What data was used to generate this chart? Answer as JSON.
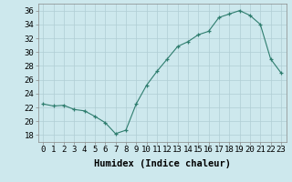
{
  "x": [
    0,
    1,
    2,
    3,
    4,
    5,
    6,
    7,
    8,
    9,
    10,
    11,
    12,
    13,
    14,
    15,
    16,
    17,
    18,
    19,
    20,
    21,
    22,
    23
  ],
  "y": [
    22.5,
    22.2,
    22.3,
    21.7,
    21.5,
    20.7,
    19.8,
    18.2,
    18.7,
    22.5,
    25.2,
    27.2,
    29.0,
    30.8,
    31.5,
    32.5,
    33.0,
    35.0,
    35.5,
    36.0,
    35.3,
    34.0,
    29.0,
    27.0
  ],
  "xlabel": "Humidex (Indice chaleur)",
  "ylabel": "",
  "ylim": [
    17,
    37
  ],
  "xlim": [
    -0.5,
    23.5
  ],
  "yticks": [
    18,
    20,
    22,
    24,
    26,
    28,
    30,
    32,
    34,
    36
  ],
  "xticks": [
    0,
    1,
    2,
    3,
    4,
    5,
    6,
    7,
    8,
    9,
    10,
    11,
    12,
    13,
    14,
    15,
    16,
    17,
    18,
    19,
    20,
    21,
    22,
    23
  ],
  "line_color": "#2e7d6e",
  "marker": "+",
  "bg_color": "#cde8ed",
  "grid_color": "#b0cdd4",
  "xlabel_fontsize": 7.5,
  "tick_fontsize": 6.5
}
